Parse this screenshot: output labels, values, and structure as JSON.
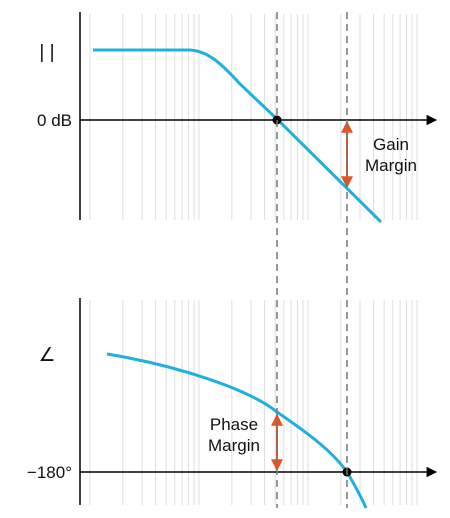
{
  "magnitude_plot": {
    "ylabel": "| |",
    "zero_label": "0 dB",
    "annotation": [
      "Gain",
      "Margin"
    ]
  },
  "phase_plot": {
    "ylabel": "∠",
    "ref_label": "−180°",
    "annotation": [
      "Phase",
      "Margin"
    ]
  },
  "colors": {
    "curve": "#1fb0de",
    "margin_arrow": "#e8521d",
    "axis": "#000000",
    "grid": "#dddddd",
    "dashed": "#777777"
  }
}
